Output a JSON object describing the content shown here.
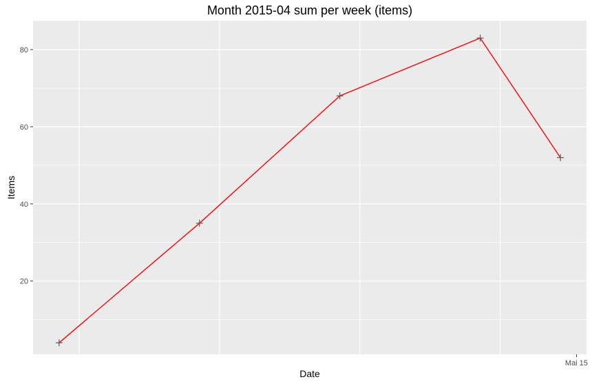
{
  "chart_data": {
    "type": "line",
    "title": "Month 2015-04 sum per week (items)",
    "xlabel": "Date",
    "ylabel": "Items",
    "x": [
      0,
      7,
      14,
      21,
      25
    ],
    "values": [
      4,
      35,
      68,
      83,
      52
    ],
    "xlim": [
      -1.3,
      26.3
    ],
    "ylim": [
      1,
      87.5
    ],
    "y_ticks": [
      20,
      40,
      60,
      80
    ],
    "y_tick_labels": [
      "20",
      "40",
      "60",
      "80"
    ],
    "x_major_grid": [
      1,
      8,
      15,
      22
    ],
    "x_ticks": [
      25.8
    ],
    "x_tick_labels": [
      "Mai 15"
    ],
    "line_color": "#ff0000",
    "point_color": "#595959",
    "panel_color": "#ebebeb",
    "grid_color": "#ffffff",
    "grid": true,
    "legend": "none"
  }
}
